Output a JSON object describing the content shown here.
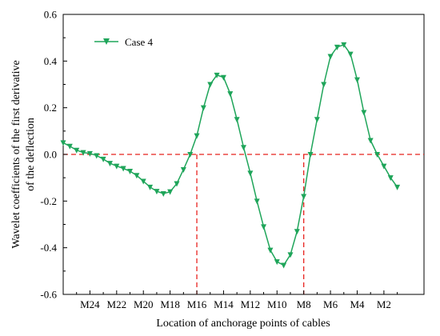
{
  "chart_data": {
    "type": "line",
    "title": "",
    "xlabel": "Location of anchorage points of cables",
    "ylabel_lines": [
      "Wavelet coefficients of the first  derivative",
      "of the deflection"
    ],
    "xlim": [
      0,
      27
    ],
    "ylim": [
      -0.6,
      0.6
    ],
    "x_ticks": [
      {
        "x": 2,
        "label": "M24"
      },
      {
        "x": 4,
        "label": "M22"
      },
      {
        "x": 6,
        "label": "M20"
      },
      {
        "x": 8,
        "label": "M18"
      },
      {
        "x": 10,
        "label": "M16"
      },
      {
        "x": 12,
        "label": "M14"
      },
      {
        "x": 14,
        "label": "M12"
      },
      {
        "x": 16,
        "label": "M10"
      },
      {
        "x": 18,
        "label": "M8"
      },
      {
        "x": 20,
        "label": "M6"
      },
      {
        "x": 22,
        "label": "M4"
      },
      {
        "x": 24,
        "label": "M2"
      }
    ],
    "y_ticks": [
      {
        "y": -0.6,
        "label": "-0.6"
      },
      {
        "y": -0.4,
        "label": "-0.4"
      },
      {
        "y": -0.2,
        "label": "-0.2"
      },
      {
        "y": 0.0,
        "label": "0.0"
      },
      {
        "y": 0.2,
        "label": "0.2"
      },
      {
        "y": 0.4,
        "label": "0.4"
      },
      {
        "y": 0.6,
        "label": "0.6"
      }
    ],
    "grid": false,
    "legend_position": "top-left",
    "series": [
      {
        "name": "Case 4",
        "color": "#1fa55a",
        "marker": "triangle-down",
        "x": [
          0,
          0.5,
          1,
          1.5,
          2,
          2.5,
          3,
          3.5,
          4,
          4.5,
          5,
          5.5,
          6,
          6.5,
          7,
          7.5,
          8,
          8.5,
          9,
          9.5,
          10,
          10.5,
          11,
          11.5,
          12,
          12.5,
          13,
          13.5,
          14,
          14.5,
          15,
          15.5,
          16,
          16.5,
          17,
          17.5,
          18,
          18.5,
          19,
          19.5,
          20,
          20.5,
          21,
          21.5,
          22,
          22.5,
          23,
          23.5,
          24,
          24.5,
          25
        ],
        "y": [
          0.05,
          0.035,
          0.018,
          0.008,
          0.004,
          -0.005,
          -0.02,
          -0.038,
          -0.05,
          -0.06,
          -0.072,
          -0.09,
          -0.115,
          -0.14,
          -0.158,
          -0.168,
          -0.16,
          -0.125,
          -0.065,
          0.0,
          0.08,
          0.2,
          0.3,
          0.34,
          0.33,
          0.26,
          0.15,
          0.03,
          -0.08,
          -0.2,
          -0.31,
          -0.41,
          -0.46,
          -0.475,
          -0.43,
          -0.33,
          -0.18,
          0.0,
          0.15,
          0.3,
          0.42,
          0.46,
          0.47,
          0.43,
          0.32,
          0.18,
          0.06,
          0.0,
          -0.05,
          -0.1,
          -0.14
        ]
      }
    ],
    "reference_lines": [
      {
        "orientation": "horizontal",
        "y": 0.0,
        "color": "#e8231f",
        "style": "dashed"
      },
      {
        "orientation": "vertical",
        "x": 10,
        "color": "#e8231f",
        "style": "dashed"
      },
      {
        "orientation": "vertical",
        "x": 18,
        "color": "#e8231f",
        "style": "dashed"
      }
    ]
  }
}
